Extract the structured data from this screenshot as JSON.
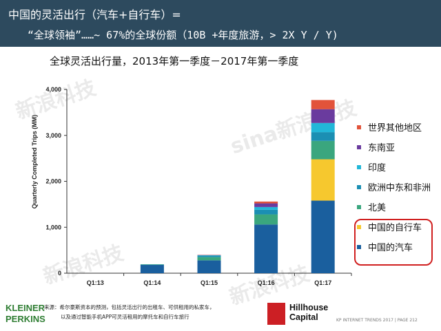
{
  "slide": {
    "title_line1": "中国的灵活出行（汽车+自行车）=",
    "title_line2": "“全球领袖”……~ 67%的全球份额（10B +年度旅游，> 2X Y / Y)",
    "source_line1": "来源：希尔豪斯资本的预测，包括灵活出行的出租车、可供租用的私家车，",
    "source_line2": "以及通过智能手机APP可灵活租用的摩托车和自行车旅行",
    "kp_logo_line1": "KLEINER",
    "kp_logo_line2": "PERKINS",
    "hillhouse_line1": "Hillhouse",
    "hillhouse_line2": "Capital",
    "footer": "KP INTERNET TRENDS 2017  |  PAGE 212",
    "watermark": "新浪科技",
    "watermark_brand": "sina"
  },
  "chart_data": {
    "type": "bar",
    "stacked": true,
    "title": "全球灵活出行量，2013年第一季度－2017年第一季度",
    "xlabel": "",
    "ylabel": "Quarterly Completed Trips (MM)",
    "ylim": [
      0,
      4000
    ],
    "yticks": [
      0,
      1000,
      2000,
      3000,
      4000
    ],
    "ytick_labels": [
      "0",
      "1,000",
      "2,000",
      "3,000",
      "4,000"
    ],
    "categories": [
      "Q1:13",
      "Q1:14",
      "Q1:15",
      "Q1:16",
      "Q1:17"
    ],
    "series": [
      {
        "name": "中国的汽车",
        "color": "#1a5f9e",
        "values": [
          0,
          180,
          280,
          1060,
          1580
        ]
      },
      {
        "name": "中国的自行车",
        "color": "#f6c82e",
        "values": [
          0,
          0,
          0,
          0,
          900
        ]
      },
      {
        "name": "北美",
        "color": "#3aa67e",
        "values": [
          0,
          10,
          70,
          220,
          400
        ]
      },
      {
        "name": "欧洲中东和非洲",
        "color": "#1b8fb3",
        "values": [
          0,
          5,
          30,
          100,
          190
        ]
      },
      {
        "name": "印度",
        "color": "#22b7d8",
        "values": [
          0,
          0,
          10,
          60,
          200
        ]
      },
      {
        "name": "东南亚",
        "color": "#6a3b9e",
        "values": [
          0,
          0,
          5,
          80,
          300
        ]
      },
      {
        "name": "世界其他地区",
        "color": "#e2533a",
        "values": [
          0,
          0,
          5,
          40,
          200
        ]
      }
    ],
    "legend_position": "right",
    "legend_order": [
      "世界其他地区",
      "东南亚",
      "印度",
      "欧洲中东和非洲",
      "北美",
      "中国的自行车",
      "中国的汽车"
    ],
    "highlight_box_series": [
      "中国的自行车",
      "中国的汽车"
    ],
    "highlight_color": "#d01f1f",
    "grid": false
  }
}
